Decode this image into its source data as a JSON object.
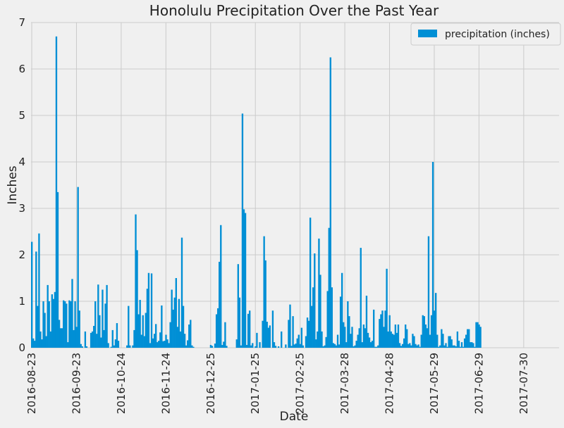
{
  "chart_data": {
    "type": "bar",
    "title": "Honolulu Precipitation Over the Past Year",
    "xlabel": "Date",
    "ylabel": "Inches",
    "ylim": [
      0,
      7
    ],
    "yticks": [
      0,
      1,
      2,
      3,
      4,
      5,
      6,
      7
    ],
    "xticks": [
      "2016-08-23",
      "2016-09-23",
      "2016-10-24",
      "2016-11-24",
      "2016-12-25",
      "2017-01-25",
      "2017-02-25",
      "2017-03-28",
      "2017-04-28",
      "2017-05-29",
      "2017-06-29",
      "2017-07-30"
    ],
    "x_range": [
      "2016-08-23",
      "2017-08-23"
    ],
    "grid": true,
    "legend_position": "top-right",
    "series": [
      {
        "name": "precipitation (inches)",
        "color": "#008fd5",
        "points": [
          [
            "2016-08-23",
            2.28
          ],
          [
            "2016-08-24",
            0.2
          ],
          [
            "2016-08-25",
            0.15
          ],
          [
            "2016-08-26",
            2.07
          ],
          [
            "2016-08-27",
            0.9
          ],
          [
            "2016-08-28",
            2.46
          ],
          [
            "2016-08-29",
            0.35
          ],
          [
            "2016-08-30",
            0.18
          ],
          [
            "2016-08-31",
            1.0
          ],
          [
            "2016-09-01",
            0.75
          ],
          [
            "2016-09-02",
            0.25
          ],
          [
            "2016-09-03",
            1.35
          ],
          [
            "2016-09-04",
            1.0
          ],
          [
            "2016-09-05",
            0.35
          ],
          [
            "2016-09-06",
            1.15
          ],
          [
            "2016-09-07",
            1.05
          ],
          [
            "2016-09-08",
            1.2
          ],
          [
            "2016-09-09",
            6.7
          ],
          [
            "2016-09-10",
            3.35
          ],
          [
            "2016-09-11",
            0.6
          ],
          [
            "2016-09-12",
            0.42
          ],
          [
            "2016-09-13",
            0.42
          ],
          [
            "2016-09-14",
            1.02
          ],
          [
            "2016-09-15",
            1.0
          ],
          [
            "2016-09-16",
            0.95
          ],
          [
            "2016-09-17",
            0.12
          ],
          [
            "2016-09-18",
            1.02
          ],
          [
            "2016-09-19",
            1.0
          ],
          [
            "2016-09-20",
            1.48
          ],
          [
            "2016-09-21",
            0.38
          ],
          [
            "2016-09-22",
            1.0
          ],
          [
            "2016-09-23",
            0.45
          ],
          [
            "2016-09-24",
            3.46
          ],
          [
            "2016-09-25",
            0.8
          ],
          [
            "2016-09-26",
            0.08
          ],
          [
            "2016-09-27",
            0.03
          ],
          [
            "2016-09-29",
            0.35
          ],
          [
            "2016-09-30",
            0.03
          ],
          [
            "2016-10-03",
            0.32
          ],
          [
            "2016-10-04",
            0.35
          ],
          [
            "2016-10-05",
            0.47
          ],
          [
            "2016-10-06",
            1.0
          ],
          [
            "2016-10-07",
            0.3
          ],
          [
            "2016-10-08",
            1.36
          ],
          [
            "2016-10-09",
            0.7
          ],
          [
            "2016-10-10",
            0.22
          ],
          [
            "2016-10-11",
            1.25
          ],
          [
            "2016-10-12",
            0.38
          ],
          [
            "2016-10-13",
            0.95
          ],
          [
            "2016-10-14",
            1.35
          ],
          [
            "2016-10-15",
            0.1
          ],
          [
            "2016-10-17",
            0.02
          ],
          [
            "2016-10-18",
            0.38
          ],
          [
            "2016-10-19",
            0.05
          ],
          [
            "2016-10-20",
            0.18
          ],
          [
            "2016-10-21",
            0.53
          ],
          [
            "2016-10-22",
            0.15
          ],
          [
            "2016-10-28",
            0.05
          ],
          [
            "2016-10-29",
            0.9
          ],
          [
            "2016-10-30",
            0.05
          ],
          [
            "2016-11-01",
            0.05
          ],
          [
            "2016-11-02",
            0.38
          ],
          [
            "2016-11-03",
            2.87
          ],
          [
            "2016-11-04",
            2.1
          ],
          [
            "2016-11-05",
            0.72
          ],
          [
            "2016-11-06",
            1.03
          ],
          [
            "2016-11-07",
            0.28
          ],
          [
            "2016-11-08",
            0.7
          ],
          [
            "2016-11-09",
            0.25
          ],
          [
            "2016-11-10",
            0.75
          ],
          [
            "2016-11-11",
            1.27
          ],
          [
            "2016-11-12",
            1.61
          ],
          [
            "2016-11-13",
            0.1
          ],
          [
            "2016-11-14",
            1.6
          ],
          [
            "2016-11-15",
            0.2
          ],
          [
            "2016-11-16",
            0.3
          ],
          [
            "2016-11-17",
            0.51
          ],
          [
            "2016-11-18",
            0.12
          ],
          [
            "2016-11-19",
            0.15
          ],
          [
            "2016-11-20",
            0.33
          ],
          [
            "2016-11-21",
            0.91
          ],
          [
            "2016-11-22",
            0.14
          ],
          [
            "2016-11-23",
            0.15
          ],
          [
            "2016-11-24",
            0.28
          ],
          [
            "2016-11-25",
            0.18
          ],
          [
            "2016-11-26",
            0.1
          ],
          [
            "2016-11-27",
            0.55
          ],
          [
            "2016-11-28",
            1.25
          ],
          [
            "2016-11-29",
            0.82
          ],
          [
            "2016-11-30",
            1.08
          ],
          [
            "2016-12-01",
            1.5
          ],
          [
            "2016-12-02",
            0.45
          ],
          [
            "2016-12-03",
            1.05
          ],
          [
            "2016-12-04",
            0.35
          ],
          [
            "2016-12-05",
            2.37
          ],
          [
            "2016-12-06",
            0.9
          ],
          [
            "2016-12-07",
            0.3
          ],
          [
            "2016-12-08",
            0.05
          ],
          [
            "2016-12-09",
            0.16
          ],
          [
            "2016-12-10",
            0.5
          ],
          [
            "2016-12-11",
            0.6
          ],
          [
            "2016-12-12",
            0.05
          ],
          [
            "2016-12-13",
            0.02
          ],
          [
            "2016-12-25",
            0.06
          ],
          [
            "2016-12-26",
            0.04
          ],
          [
            "2016-12-28",
            0.09
          ],
          [
            "2016-12-29",
            0.72
          ],
          [
            "2016-12-30",
            0.85
          ],
          [
            "2016-12-31",
            1.85
          ],
          [
            "2017-01-01",
            2.64
          ],
          [
            "2017-01-02",
            0.06
          ],
          [
            "2017-01-03",
            0.13
          ],
          [
            "2017-01-04",
            0.55
          ],
          [
            "2017-01-05",
            0.04
          ],
          [
            "2017-01-12",
            0.18
          ],
          [
            "2017-01-13",
            1.8
          ],
          [
            "2017-01-14",
            1.08
          ],
          [
            "2017-01-15",
            0.05
          ],
          [
            "2017-01-16",
            5.04
          ],
          [
            "2017-01-17",
            2.98
          ],
          [
            "2017-01-18",
            2.9
          ],
          [
            "2017-01-19",
            0.06
          ],
          [
            "2017-01-20",
            0.73
          ],
          [
            "2017-01-21",
            0.8
          ],
          [
            "2017-01-22",
            0.05
          ],
          [
            "2017-01-23",
            0.1
          ],
          [
            "2017-01-25",
            0.03
          ],
          [
            "2017-01-26",
            0.32
          ],
          [
            "2017-01-28",
            0.12
          ],
          [
            "2017-01-30",
            0.58
          ],
          [
            "2017-01-31",
            2.4
          ],
          [
            "2017-02-01",
            1.88
          ],
          [
            "2017-02-02",
            0.56
          ],
          [
            "2017-02-03",
            0.43
          ],
          [
            "2017-02-04",
            0.48
          ],
          [
            "2017-02-06",
            0.8
          ],
          [
            "2017-02-07",
            0.12
          ],
          [
            "2017-02-08",
            0.04
          ],
          [
            "2017-02-10",
            0.03
          ],
          [
            "2017-02-12",
            0.35
          ],
          [
            "2017-02-15",
            0.07
          ],
          [
            "2017-02-17",
            0.6
          ],
          [
            "2017-02-18",
            0.93
          ],
          [
            "2017-02-19",
            0.04
          ],
          [
            "2017-02-20",
            0.68
          ],
          [
            "2017-02-21",
            0.07
          ],
          [
            "2017-02-22",
            0.09
          ],
          [
            "2017-02-23",
            0.2
          ],
          [
            "2017-02-24",
            0.28
          ],
          [
            "2017-02-25",
            0.08
          ],
          [
            "2017-02-26",
            0.43
          ],
          [
            "2017-02-27",
            0.05
          ],
          [
            "2017-03-01",
            0.25
          ],
          [
            "2017-03-02",
            0.65
          ],
          [
            "2017-03-03",
            0.58
          ],
          [
            "2017-03-04",
            2.8
          ],
          [
            "2017-03-05",
            0.9
          ],
          [
            "2017-03-06",
            1.3
          ],
          [
            "2017-03-07",
            2.03
          ],
          [
            "2017-03-08",
            0.18
          ],
          [
            "2017-03-09",
            0.35
          ],
          [
            "2017-03-10",
            2.35
          ],
          [
            "2017-03-11",
            1.57
          ],
          [
            "2017-03-12",
            0.35
          ],
          [
            "2017-03-13",
            0.03
          ],
          [
            "2017-03-14",
            0.05
          ],
          [
            "2017-03-15",
            0.23
          ],
          [
            "2017-03-16",
            1.22
          ],
          [
            "2017-03-17",
            2.58
          ],
          [
            "2017-03-18",
            6.25
          ],
          [
            "2017-03-19",
            1.3
          ],
          [
            "2017-03-20",
            0.1
          ],
          [
            "2017-03-21",
            0.08
          ],
          [
            "2017-03-22",
            0.05
          ],
          [
            "2017-03-23",
            0.28
          ],
          [
            "2017-03-24",
            0.07
          ],
          [
            "2017-03-25",
            1.1
          ],
          [
            "2017-03-26",
            1.61
          ],
          [
            "2017-03-27",
            0.55
          ],
          [
            "2017-03-28",
            0.45
          ],
          [
            "2017-03-29",
            0.12
          ],
          [
            "2017-03-30",
            1.0
          ],
          [
            "2017-03-31",
            0.68
          ],
          [
            "2017-04-01",
            0.3
          ],
          [
            "2017-04-02",
            0.45
          ],
          [
            "2017-04-03",
            0.03
          ],
          [
            "2017-04-04",
            0.05
          ],
          [
            "2017-04-05",
            0.15
          ],
          [
            "2017-04-06",
            0.28
          ],
          [
            "2017-04-07",
            0.42
          ],
          [
            "2017-04-08",
            2.15
          ],
          [
            "2017-04-09",
            0.12
          ],
          [
            "2017-04-10",
            0.5
          ],
          [
            "2017-04-11",
            0.42
          ],
          [
            "2017-04-12",
            1.12
          ],
          [
            "2017-04-13",
            0.32
          ],
          [
            "2017-04-14",
            0.22
          ],
          [
            "2017-04-15",
            0.12
          ],
          [
            "2017-04-16",
            0.15
          ],
          [
            "2017-04-17",
            0.82
          ],
          [
            "2017-04-18",
            0.02
          ],
          [
            "2017-04-19",
            0.02
          ],
          [
            "2017-04-20",
            0.05
          ],
          [
            "2017-04-21",
            0.62
          ],
          [
            "2017-04-22",
            0.72
          ],
          [
            "2017-04-23",
            0.8
          ],
          [
            "2017-04-24",
            0.45
          ],
          [
            "2017-04-25",
            0.8
          ],
          [
            "2017-04-26",
            1.7
          ],
          [
            "2017-04-27",
            0.35
          ],
          [
            "2017-04-28",
            0.7
          ],
          [
            "2017-04-29",
            0.35
          ],
          [
            "2017-04-30",
            0.3
          ],
          [
            "2017-05-01",
            0.28
          ],
          [
            "2017-05-02",
            0.5
          ],
          [
            "2017-05-03",
            0.32
          ],
          [
            "2017-05-04",
            0.5
          ],
          [
            "2017-05-05",
            0.1
          ],
          [
            "2017-05-06",
            0.04
          ],
          [
            "2017-05-07",
            0.08
          ],
          [
            "2017-05-08",
            0.2
          ],
          [
            "2017-05-09",
            0.5
          ],
          [
            "2017-05-10",
            0.4
          ],
          [
            "2017-05-11",
            0.08
          ],
          [
            "2017-05-12",
            0.1
          ],
          [
            "2017-05-13",
            0.05
          ],
          [
            "2017-05-14",
            0.3
          ],
          [
            "2017-05-15",
            0.25
          ],
          [
            "2017-05-16",
            0.08
          ],
          [
            "2017-05-17",
            0.05
          ],
          [
            "2017-05-18",
            0.07
          ],
          [
            "2017-05-19",
            0.02
          ],
          [
            "2017-05-20",
            0.28
          ],
          [
            "2017-05-21",
            0.7
          ],
          [
            "2017-05-22",
            0.68
          ],
          [
            "2017-05-23",
            0.5
          ],
          [
            "2017-05-24",
            0.42
          ],
          [
            "2017-05-25",
            2.4
          ],
          [
            "2017-05-26",
            0.28
          ],
          [
            "2017-05-27",
            0.7
          ],
          [
            "2017-05-28",
            4.0
          ],
          [
            "2017-05-29",
            0.8
          ],
          [
            "2017-05-30",
            1.18
          ],
          [
            "2017-05-31",
            0.28
          ],
          [
            "2017-06-01",
            0.02
          ],
          [
            "2017-06-02",
            0.05
          ],
          [
            "2017-06-03",
            0.4
          ],
          [
            "2017-06-04",
            0.3
          ],
          [
            "2017-06-05",
            0.05
          ],
          [
            "2017-06-06",
            0.1
          ],
          [
            "2017-06-07",
            0.02
          ],
          [
            "2017-06-08",
            0.25
          ],
          [
            "2017-06-09",
            0.25
          ],
          [
            "2017-06-10",
            0.18
          ],
          [
            "2017-06-11",
            0.05
          ],
          [
            "2017-06-12",
            0.05
          ],
          [
            "2017-06-13",
            0.03
          ],
          [
            "2017-06-14",
            0.35
          ],
          [
            "2017-06-15",
            0.15
          ],
          [
            "2017-06-16",
            0.02
          ],
          [
            "2017-06-17",
            0.12
          ],
          [
            "2017-06-18",
            0.02
          ],
          [
            "2017-06-19",
            0.2
          ],
          [
            "2017-06-20",
            0.28
          ],
          [
            "2017-06-21",
            0.4
          ],
          [
            "2017-06-22",
            0.4
          ],
          [
            "2017-06-23",
            0.12
          ],
          [
            "2017-06-24",
            0.12
          ],
          [
            "2017-06-25",
            0.1
          ],
          [
            "2017-06-26",
            0.02
          ],
          [
            "2017-06-27",
            0.55
          ],
          [
            "2017-06-28",
            0.55
          ],
          [
            "2017-06-29",
            0.5
          ],
          [
            "2017-06-30",
            0.45
          ]
        ]
      }
    ]
  }
}
